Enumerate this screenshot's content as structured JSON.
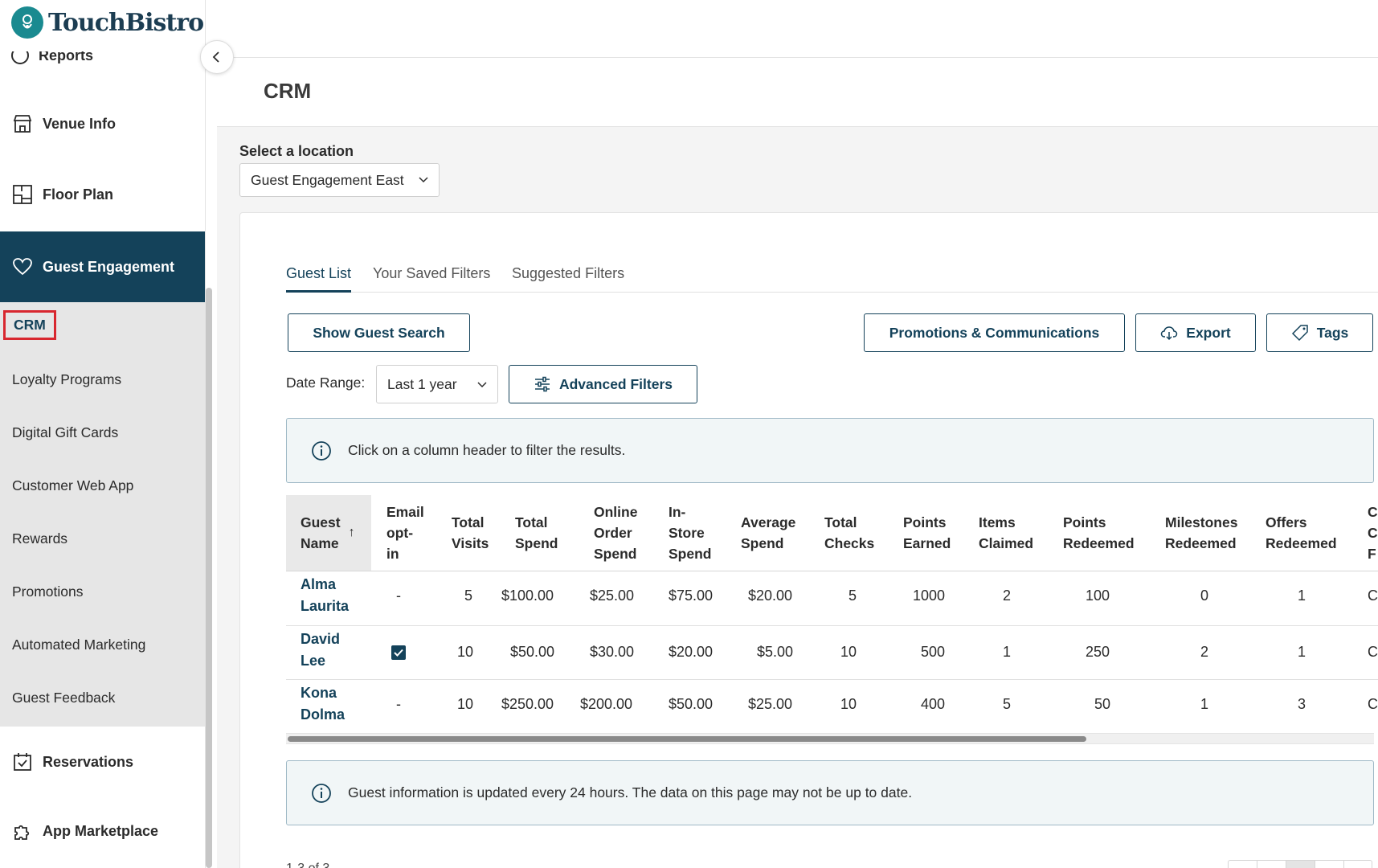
{
  "app": {
    "brand": "TouchBistro",
    "page_title": "CRM"
  },
  "colors": {
    "brand_dark": "#14425a",
    "brand_teal": "#1a8a90",
    "highlight_red": "#d8272f"
  },
  "sidebar": {
    "reports_label": "Reports",
    "items": [
      {
        "label": "Venue Info",
        "icon": "store-icon"
      },
      {
        "label": "Floor Plan",
        "icon": "floor-plan-icon"
      },
      {
        "label": "Guest Engagement",
        "icon": "heart-icon"
      },
      {
        "label": "Reservations",
        "icon": "calendar-check-icon"
      },
      {
        "label": "App Marketplace",
        "icon": "puzzle-icon"
      }
    ],
    "submenu": [
      "CRM",
      "Loyalty Programs",
      "Digital Gift Cards",
      "Customer Web App",
      "Rewards",
      "Promotions",
      "Automated Marketing",
      "Guest Feedback"
    ]
  },
  "location": {
    "label": "Select a location",
    "value": "Guest Engagement East"
  },
  "tabs": [
    "Guest List",
    "Your Saved Filters",
    "Suggested Filters"
  ],
  "toolbar": {
    "show_guest_search": "Show Guest Search",
    "promotions": "Promotions & Communications",
    "export": "Export",
    "tags": "Tags",
    "date_range_label": "Date Range:",
    "date_range_value": "Last 1 year",
    "advanced_filters": "Advanced Filters"
  },
  "info_top": "Click on a column header to filter the results.",
  "info_bottom": "Guest information is updated every 24 hours. The data on this page may not be up to date.",
  "table": {
    "columns": [
      [
        "Guest",
        "Name"
      ],
      [
        "Email",
        "opt-",
        "in"
      ],
      [
        "Total",
        "Visits"
      ],
      [
        "Total",
        "Spend"
      ],
      [
        "Online",
        "Order",
        "Spend"
      ],
      [
        "In-",
        "Store",
        "Spend"
      ],
      [
        "Average",
        "Spend"
      ],
      [
        "Total",
        "Checks"
      ],
      [
        "Points",
        "Earned"
      ],
      [
        "Items",
        "Claimed"
      ],
      [
        "Points",
        "Redeemed"
      ],
      [
        "Milestones",
        "Redeemed"
      ],
      [
        "Offers",
        "Redeemed"
      ],
      [
        "C",
        "C",
        "F"
      ]
    ],
    "rows": [
      {
        "name": [
          "Alma",
          "Laurita"
        ],
        "email_opt_in": false,
        "email_text": "-",
        "visits": "5",
        "total_spend": "$100.00",
        "online": "$25.00",
        "instore": "$75.00",
        "average": "$20.00",
        "checks": "5",
        "points_earned": "1000",
        "items": "2",
        "points_redeemed": "100",
        "milestones": "0",
        "offers": "1",
        "extra": "C"
      },
      {
        "name": [
          "David",
          "Lee"
        ],
        "email_opt_in": true,
        "email_text": "",
        "visits": "10",
        "total_spend": "$50.00",
        "online": "$30.00",
        "instore": "$20.00",
        "average": "$5.00",
        "checks": "10",
        "points_earned": "500",
        "items": "1",
        "points_redeemed": "250",
        "milestones": "2",
        "offers": "1",
        "extra": "C"
      },
      {
        "name": [
          "Kona",
          "Dolma"
        ],
        "email_opt_in": false,
        "email_text": "-",
        "visits": "10",
        "total_spend": "$250.00",
        "online": "$200.00",
        "instore": "$50.00",
        "average": "$25.00",
        "checks": "10",
        "points_earned": "400",
        "items": "5",
        "points_redeemed": "50",
        "milestones": "1",
        "offers": "3",
        "extra": "C"
      }
    ]
  },
  "footer": {
    "count_text": "1-3 of 3"
  }
}
